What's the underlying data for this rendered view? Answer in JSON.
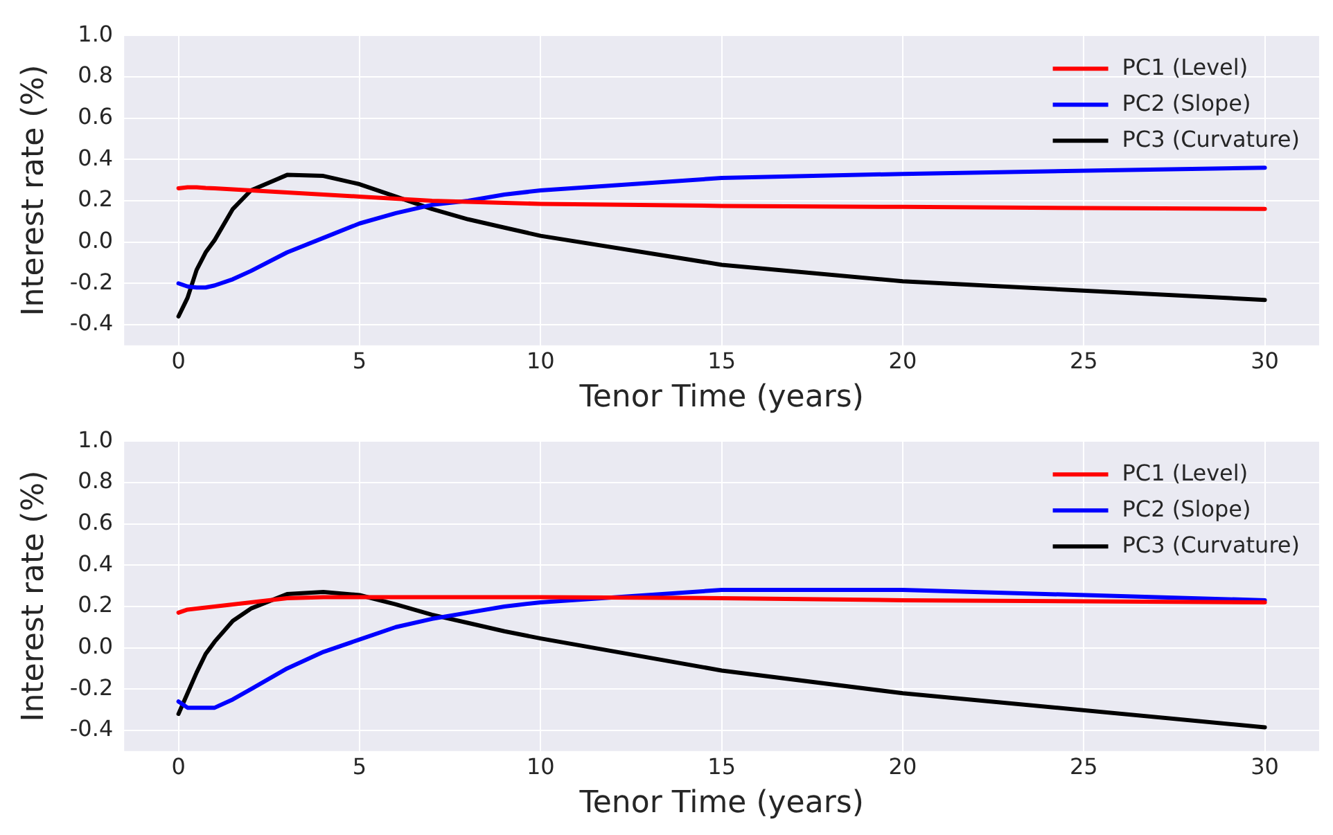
{
  "chart_data": [
    {
      "type": "line",
      "xlabel": "Tenor Time (years)",
      "ylabel": "Interest rate (%)",
      "x": [
        0,
        0.25,
        0.5,
        0.75,
        1,
        1.5,
        2,
        3,
        4,
        5,
        6,
        7,
        8,
        9,
        10,
        15,
        20,
        30
      ],
      "xlim": [
        -1.5,
        31.5
      ],
      "xticks": [
        0,
        5,
        10,
        15,
        20,
        25,
        30
      ],
      "ylim": [
        -0.5,
        1.0
      ],
      "yticks": [
        {
          "value": -0.4,
          "label": "-0.4"
        },
        {
          "value": -0.2,
          "label": "-0.2"
        },
        {
          "value": 0,
          "label": "0.0"
        },
        {
          "value": 0.2,
          "label": "0.2"
        },
        {
          "value": 0.4,
          "label": "0.4"
        },
        {
          "value": 0.6,
          "label": "0.6"
        },
        {
          "value": 0.8,
          "label": "0.8"
        },
        {
          "value": 1.0,
          "label": "1.0"
        }
      ],
      "grid": true,
      "legend": "top right",
      "marker": "none",
      "line_style": "solid",
      "series": [
        {
          "name": "PC1 (Level)",
          "color": "#ff0000",
          "values": [
            0.26,
            0.265,
            0.265,
            0.262,
            0.26,
            0.255,
            0.25,
            0.24,
            0.23,
            0.22,
            0.21,
            0.2,
            0.195,
            0.19,
            0.185,
            0.175,
            0.17,
            0.16
          ]
        },
        {
          "name": "PC2 (Slope)",
          "color": "#0000ff",
          "values": [
            -0.2,
            -0.215,
            -0.22,
            -0.22,
            -0.21,
            -0.18,
            -0.14,
            -0.05,
            0.02,
            0.09,
            0.14,
            0.18,
            0.2,
            0.23,
            0.25,
            0.31,
            0.33,
            0.36
          ]
        },
        {
          "name": "PC3 (Curvature)",
          "color": "#000000",
          "values": [
            -0.36,
            -0.27,
            -0.135,
            -0.05,
            0.01,
            0.16,
            0.25,
            0.325,
            0.32,
            0.28,
            0.22,
            0.16,
            0.11,
            0.07,
            0.03,
            -0.11,
            -0.19,
            -0.28
          ]
        }
      ]
    },
    {
      "type": "line",
      "xlabel": "Tenor Time (years)",
      "ylabel": "Interest rate (%)",
      "x": [
        0,
        0.25,
        0.5,
        0.75,
        1,
        1.5,
        2,
        3,
        4,
        5,
        6,
        7,
        8,
        9,
        10,
        15,
        20,
        30
      ],
      "xlim": [
        -1.5,
        31.5
      ],
      "xticks": [
        0,
        5,
        10,
        15,
        20,
        25,
        30
      ],
      "ylim": [
        -0.5,
        1.0
      ],
      "yticks": [
        {
          "value": -0.4,
          "label": "-0.4"
        },
        {
          "value": -0.2,
          "label": "-0.2"
        },
        {
          "value": 0,
          "label": "0.0"
        },
        {
          "value": 0.2,
          "label": "0.2"
        },
        {
          "value": 0.4,
          "label": "0.4"
        },
        {
          "value": 0.6,
          "label": "0.6"
        },
        {
          "value": 0.8,
          "label": "0.8"
        },
        {
          "value": 1.0,
          "label": "1.0"
        }
      ],
      "grid": true,
      "legend": "top right",
      "marker": "none",
      "line_style": "solid",
      "series": [
        {
          "name": "PC1 (Level)",
          "color": "#ff0000",
          "values": [
            0.17,
            0.185,
            0.19,
            0.195,
            0.2,
            0.21,
            0.22,
            0.24,
            0.245,
            0.245,
            0.245,
            0.245,
            0.245,
            0.245,
            0.245,
            0.24,
            0.23,
            0.22
          ]
        },
        {
          "name": "PC2 (Slope)",
          "color": "#0000ff",
          "values": [
            -0.26,
            -0.29,
            -0.29,
            -0.29,
            -0.29,
            -0.25,
            -0.2,
            -0.1,
            -0.02,
            0.04,
            0.1,
            0.14,
            0.17,
            0.2,
            0.22,
            0.28,
            0.28,
            0.23
          ]
        },
        {
          "name": "PC3 (Curvature)",
          "color": "#000000",
          "values": [
            -0.32,
            -0.22,
            -0.12,
            -0.03,
            0.03,
            0.13,
            0.19,
            0.26,
            0.27,
            0.255,
            0.21,
            0.16,
            0.12,
            0.08,
            0.045,
            -0.11,
            -0.22,
            -0.385
          ]
        }
      ]
    }
  ]
}
